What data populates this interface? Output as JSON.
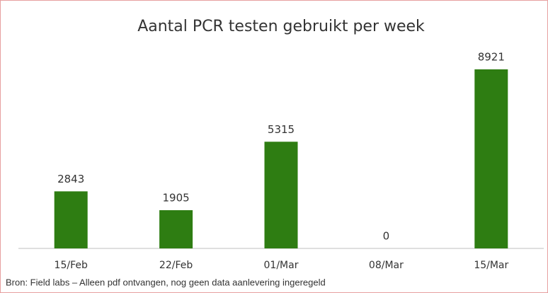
{
  "chart_data": {
    "type": "bar",
    "title": "Aantal PCR testen gebruikt per week",
    "categories": [
      "15/Feb",
      "22/Feb",
      "01/Mar",
      "08/Mar",
      "15/Mar"
    ],
    "values": [
      2843,
      1905,
      5315,
      0,
      8921
    ],
    "color": "#2e7d12",
    "source": "Bron: Field labs – Alleen pdf ontvangen, nog geen data aanlevering ingeregeld"
  }
}
